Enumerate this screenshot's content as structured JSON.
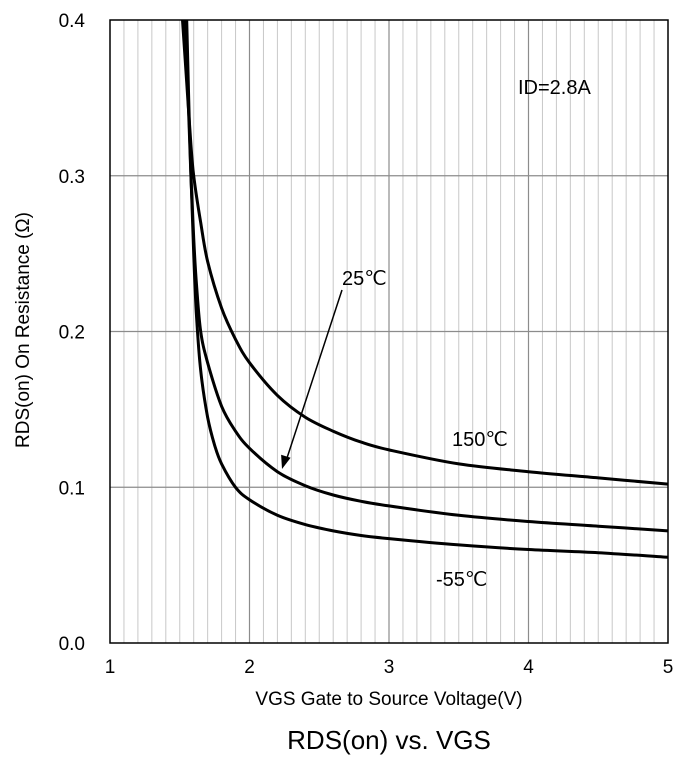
{
  "chart_data": {
    "type": "line",
    "title": "RDS(on) vs. VGS",
    "xlabel": "VGS Gate to Source Voltage(V)",
    "ylabel": "RDS(on)  On Resistance (Ω)",
    "xlim": [
      1,
      5
    ],
    "ylim": [
      0,
      0.4
    ],
    "x_ticks": [
      1,
      2,
      3,
      4,
      5
    ],
    "x_tick_labels": [
      "1",
      "2",
      "3",
      "4",
      "5"
    ],
    "y_ticks": [
      0,
      0.1,
      0.2,
      0.3,
      0.4
    ],
    "y_tick_labels": [
      "0.0",
      "0.1",
      "0.2",
      "0.3",
      "0.4"
    ],
    "x_minor_step": 0.1,
    "grid": true,
    "series": [
      {
        "name": "150℃",
        "x": [
          1.52,
          1.55,
          1.58,
          1.6,
          1.65,
          1.7,
          1.8,
          1.9,
          2.0,
          2.2,
          2.4,
          2.6,
          2.8,
          3.0,
          3.5,
          4.0,
          4.5,
          5.0
        ],
        "y": [
          0.4,
          0.36,
          0.32,
          0.3,
          0.27,
          0.245,
          0.215,
          0.195,
          0.18,
          0.159,
          0.145,
          0.136,
          0.129,
          0.124,
          0.115,
          0.11,
          0.106,
          0.102
        ]
      },
      {
        "name": "25℃",
        "x": [
          1.54,
          1.56,
          1.58,
          1.6,
          1.62,
          1.65,
          1.7,
          1.8,
          1.9,
          2.0,
          2.2,
          2.4,
          2.6,
          2.8,
          3.0,
          3.5,
          4.0,
          4.5,
          5.0
        ],
        "y": [
          0.4,
          0.35,
          0.3,
          0.26,
          0.23,
          0.2,
          0.18,
          0.152,
          0.136,
          0.125,
          0.11,
          0.101,
          0.095,
          0.091,
          0.088,
          0.082,
          0.078,
          0.075,
          0.072
        ]
      },
      {
        "name": "-55℃",
        "x": [
          1.55,
          1.57,
          1.6,
          1.62,
          1.65,
          1.7,
          1.75,
          1.8,
          1.9,
          2.0,
          2.2,
          2.4,
          2.6,
          2.8,
          3.0,
          3.5,
          4.0,
          4.5,
          5.0
        ],
        "y": [
          0.4,
          0.33,
          0.25,
          0.21,
          0.175,
          0.145,
          0.127,
          0.115,
          0.1,
          0.092,
          0.082,
          0.076,
          0.072,
          0.069,
          0.067,
          0.063,
          0.06,
          0.058,
          0.055
        ]
      }
    ],
    "annotations": {
      "condition": "ID=2.8A",
      "label_150": "150℃",
      "label_25": "25℃",
      "label_m55": "-55℃"
    }
  }
}
